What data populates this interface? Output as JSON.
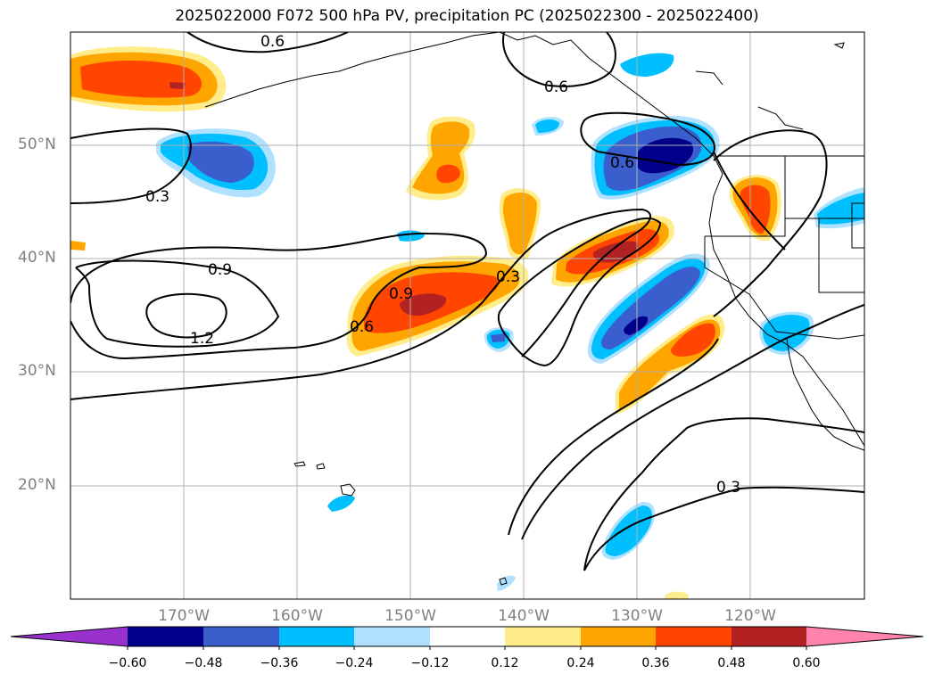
{
  "title": "2025022000 F072 500 hPa PV, precipitation PC (2025022300 - 2025022400)",
  "lat_labels": [
    "50°N",
    "40°N",
    "30°N",
    "20°N"
  ],
  "lon_labels": [
    "170°W",
    "160°W",
    "150°W",
    "140°W",
    "130°W",
    "120°W"
  ],
  "contour_labels": [
    "0.6",
    "0.6",
    "0.6",
    "0.3",
    "0.9",
    "1.2",
    "0.9",
    "0.6",
    "0.3",
    "0.3"
  ],
  "colorbar": {
    "ticks": [
      "−0.60",
      "−0.48",
      "−0.36",
      "−0.24",
      "−0.12",
      "0.12",
      "0.24",
      "0.36",
      "0.48",
      "0.60"
    ],
    "colors": [
      "#9932cc",
      "#00008b",
      "#3a5fcd",
      "#00bfff",
      "#b0e2ff",
      "#ffffff",
      "#ffec8b",
      "#ffa500",
      "#ff4500",
      "#b22222",
      "#ff83aa"
    ]
  },
  "colors": {
    "pos1": "#ffec8b",
    "pos2": "#ffa500",
    "pos3": "#ff4500",
    "pos4": "#b22222",
    "neg1": "#b0e2ff",
    "neg2": "#00bfff",
    "neg3": "#3a5fcd",
    "neg4": "#00008b",
    "grid": "#b0b0b0"
  }
}
